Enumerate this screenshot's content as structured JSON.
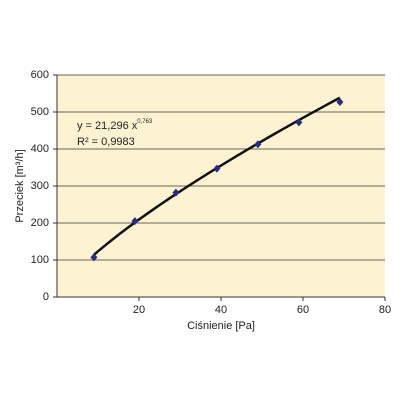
{
  "chart_data": {
    "type": "scatter",
    "x_label": "Ciśnienie [Pa]",
    "y_label": "Przeciek [m³/h]",
    "x": [
      9,
      19,
      29,
      39,
      49,
      59,
      69
    ],
    "values": [
      107,
      205,
      282,
      347,
      413,
      472,
      527
    ],
    "color": "#2b2b80",
    "xlim": [
      0,
      80
    ],
    "xticks": [
      20,
      40,
      60,
      80
    ],
    "ylim": [
      0,
      600
    ],
    "yticks": [
      0,
      100,
      200,
      300,
      400,
      500,
      600
    ],
    "grid": true,
    "background": "#fdf3d2",
    "trendline": {
      "type": "power",
      "coefficient": 21.296,
      "exponent": 0.763,
      "color": "#111111",
      "equation": "y = 21,296 x",
      "equation_exponent": "0,763",
      "r2": "R² = 0,9983"
    }
  }
}
